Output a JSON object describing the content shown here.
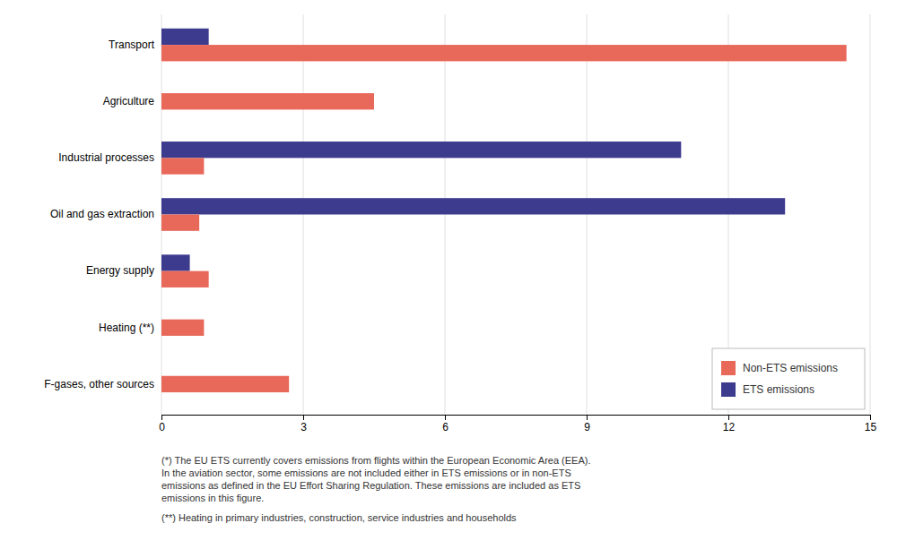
{
  "chart_data": {
    "type": "bar",
    "orientation": "horizontal",
    "categories": [
      "Transport",
      "Agriculture",
      "Industrial processes",
      "Oil and gas extraction",
      "Energy supply",
      "Heating (**)",
      "F-gases, other sources"
    ],
    "series": [
      {
        "name": "Non-ETS emissions",
        "color": "#E8685A",
        "values": [
          14.5,
          4.5,
          0.9,
          0.8,
          1.0,
          0.9,
          2.7
        ]
      },
      {
        "name": "ETS emissions",
        "color": "#3D3B8E",
        "values": [
          1.0,
          0.0,
          11.0,
          13.2,
          0.6,
          0.0,
          0.0
        ]
      }
    ],
    "xlim": [
      0,
      15
    ],
    "xticks": [
      0,
      3,
      6,
      9,
      12,
      15
    ],
    "grid": true,
    "legend": "lower right",
    "annotations": [
      "(*) The EU ETS currently covers emissions from flights within the European Economic Area (EEA).\nIn the aviation sector, some emissions are not included either in ETS emissions or in non-ETS\nemissions as defined in the EU Effort Sharing Regulation. These emissions are included as ETS\nemissions in this figure.",
      "(**) Heating in primary industries, construction, service industries and households"
    ]
  }
}
